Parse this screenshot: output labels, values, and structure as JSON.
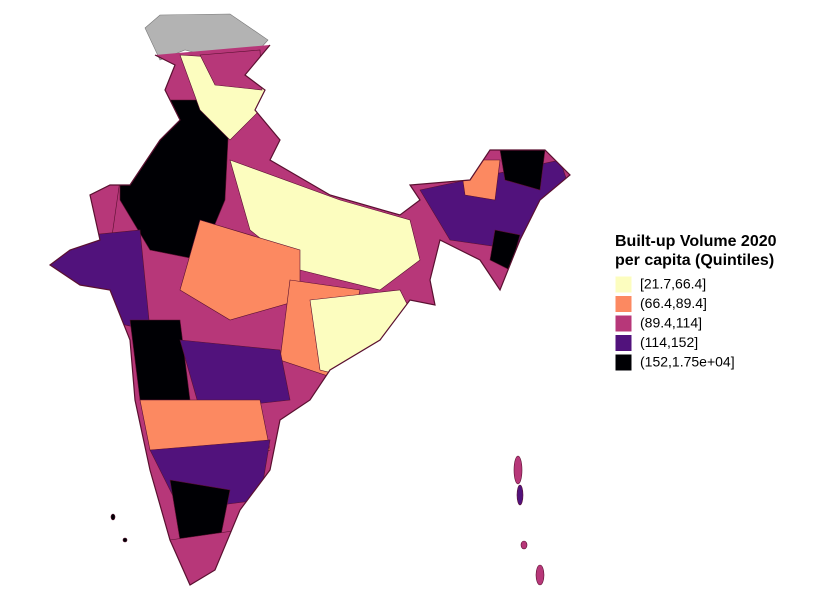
{
  "legend": {
    "title": [
      "Built-up Volume 2020",
      "per capita (Quintiles)"
    ],
    "items": [
      {
        "label": "[21.7,66.4]",
        "color": "#fcfdbf"
      },
      {
        "label": "(66.4,89.4]",
        "color": "#fc8961"
      },
      {
        "label": "(89.4,114]",
        "color": "#b73779"
      },
      {
        "label": "(114,152]",
        "color": "#51127c"
      },
      {
        "label": "(152,1.75e+04]",
        "color": "#000004"
      }
    ]
  }
}
